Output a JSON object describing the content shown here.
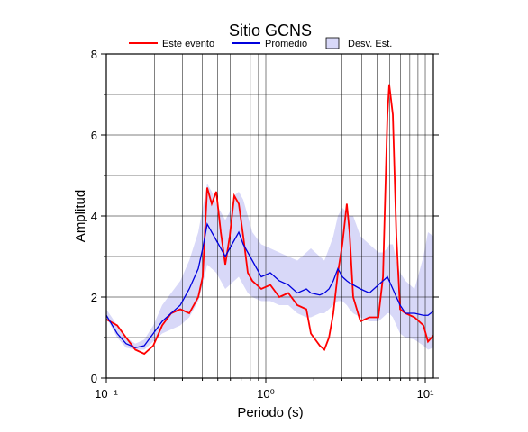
{
  "chart_data": {
    "type": "line",
    "title": "Sitio GCNS",
    "xlabel": "Periodo (s)",
    "ylabel": "Amplitud",
    "xscale": "log",
    "x": [
      0.1,
      0.117,
      0.133,
      0.152,
      0.173,
      0.197,
      0.224,
      0.255,
      0.291,
      0.331,
      0.377,
      0.402,
      0.429,
      0.458,
      0.489,
      0.522,
      0.557,
      0.594,
      0.634,
      0.677,
      0.722,
      0.771,
      0.823,
      0.937,
      1.067,
      1.215,
      1.384,
      1.577,
      1.796,
      1.917,
      2.18,
      2.33,
      2.49,
      2.65,
      2.83,
      3.02,
      3.22,
      3.35,
      3.53,
      3.92,
      4.46,
      5.08,
      5.43,
      5.79,
      5.94,
      6.26,
      6.59,
      6.95,
      7.51,
      8.56,
      9.74,
      10.4,
      11.24
    ],
    "series": [
      {
        "name": "Este evento",
        "color": "#ff0000",
        "values": [
          1.45,
          1.3,
          1.0,
          0.7,
          0.6,
          0.8,
          1.3,
          1.6,
          1.7,
          1.6,
          2.0,
          2.5,
          4.7,
          4.3,
          4.6,
          3.6,
          2.8,
          3.5,
          4.5,
          4.3,
          3.5,
          2.6,
          2.4,
          2.2,
          2.3,
          2.0,
          2.1,
          1.8,
          1.7,
          1.1,
          0.8,
          0.7,
          1.0,
          1.6,
          2.6,
          3.3,
          4.3,
          3.6,
          2.0,
          1.4,
          1.5,
          1.5,
          2.5,
          6.5,
          7.25,
          6.5,
          3.5,
          1.7,
          1.6,
          1.5,
          1.3,
          0.9,
          1.05
        ]
      },
      {
        "name": "Promedio",
        "color": "#0000dd",
        "values": [
          1.55,
          1.1,
          0.85,
          0.75,
          0.8,
          1.1,
          1.4,
          1.6,
          1.8,
          2.2,
          2.7,
          3.2,
          3.8,
          3.6,
          3.4,
          3.2,
          3.0,
          3.2,
          3.4,
          3.6,
          3.3,
          3.1,
          2.9,
          2.5,
          2.6,
          2.4,
          2.3,
          2.1,
          2.2,
          2.1,
          2.05,
          2.1,
          2.2,
          2.4,
          2.7,
          2.5,
          2.4,
          2.35,
          2.3,
          2.2,
          2.1,
          2.3,
          2.4,
          2.5,
          2.4,
          2.2,
          2.0,
          1.8,
          1.6,
          1.6,
          1.55,
          1.55,
          1.65
        ]
      },
      {
        "name": "Desv. Est.",
        "color": "#d8d8f8",
        "lower": [
          1.5,
          1.0,
          0.75,
          0.7,
          0.7,
          0.9,
          1.1,
          1.2,
          1.3,
          1.5,
          1.9,
          2.3,
          2.8,
          2.7,
          2.6,
          2.4,
          2.2,
          2.3,
          2.4,
          2.5,
          2.3,
          2.1,
          2.0,
          1.9,
          1.9,
          1.8,
          1.8,
          1.6,
          1.5,
          1.5,
          1.6,
          1.6,
          1.7,
          1.8,
          1.9,
          1.9,
          1.8,
          1.7,
          1.6,
          1.5,
          1.4,
          1.4,
          1.5,
          1.6,
          1.6,
          1.5,
          1.3,
          1.1,
          1.0,
          0.95,
          0.8,
          0.7,
          0.75
        ],
        "upper": [
          1.7,
          1.3,
          1.0,
          0.85,
          0.95,
          1.3,
          1.8,
          2.1,
          2.4,
          2.9,
          3.6,
          4.2,
          4.8,
          4.6,
          4.3,
          4.1,
          3.9,
          4.1,
          4.5,
          4.6,
          4.4,
          4.0,
          3.6,
          3.3,
          3.2,
          3.1,
          3.0,
          2.9,
          3.1,
          3.2,
          3.0,
          2.9,
          3.2,
          3.5,
          4.0,
          4.2,
          4.1,
          4.0,
          4.0,
          3.5,
          3.3,
          3.1,
          3.1,
          3.2,
          3.3,
          3.3,
          2.9,
          2.6,
          2.4,
          2.2,
          3.0,
          3.6,
          3.5
        ]
      }
    ],
    "xlim": [
      0.1,
      11.24
    ],
    "ylim": [
      0,
      8
    ],
    "xticks": [
      {
        "value": 0.1,
        "label": "10⁻¹"
      },
      {
        "value": 1,
        "label": "10⁰"
      },
      {
        "value": 10,
        "label": "10¹"
      }
    ],
    "yticks": [
      0,
      2,
      4,
      6,
      8
    ],
    "xgrid": [
      0.2,
      0.3,
      0.4,
      0.5,
      0.6,
      0.7,
      0.8,
      0.9,
      1,
      2,
      3,
      4,
      5,
      6,
      7,
      8,
      9,
      10
    ],
    "ygrid": [
      1,
      2,
      3,
      4,
      5,
      6,
      7
    ],
    "grid": true
  }
}
